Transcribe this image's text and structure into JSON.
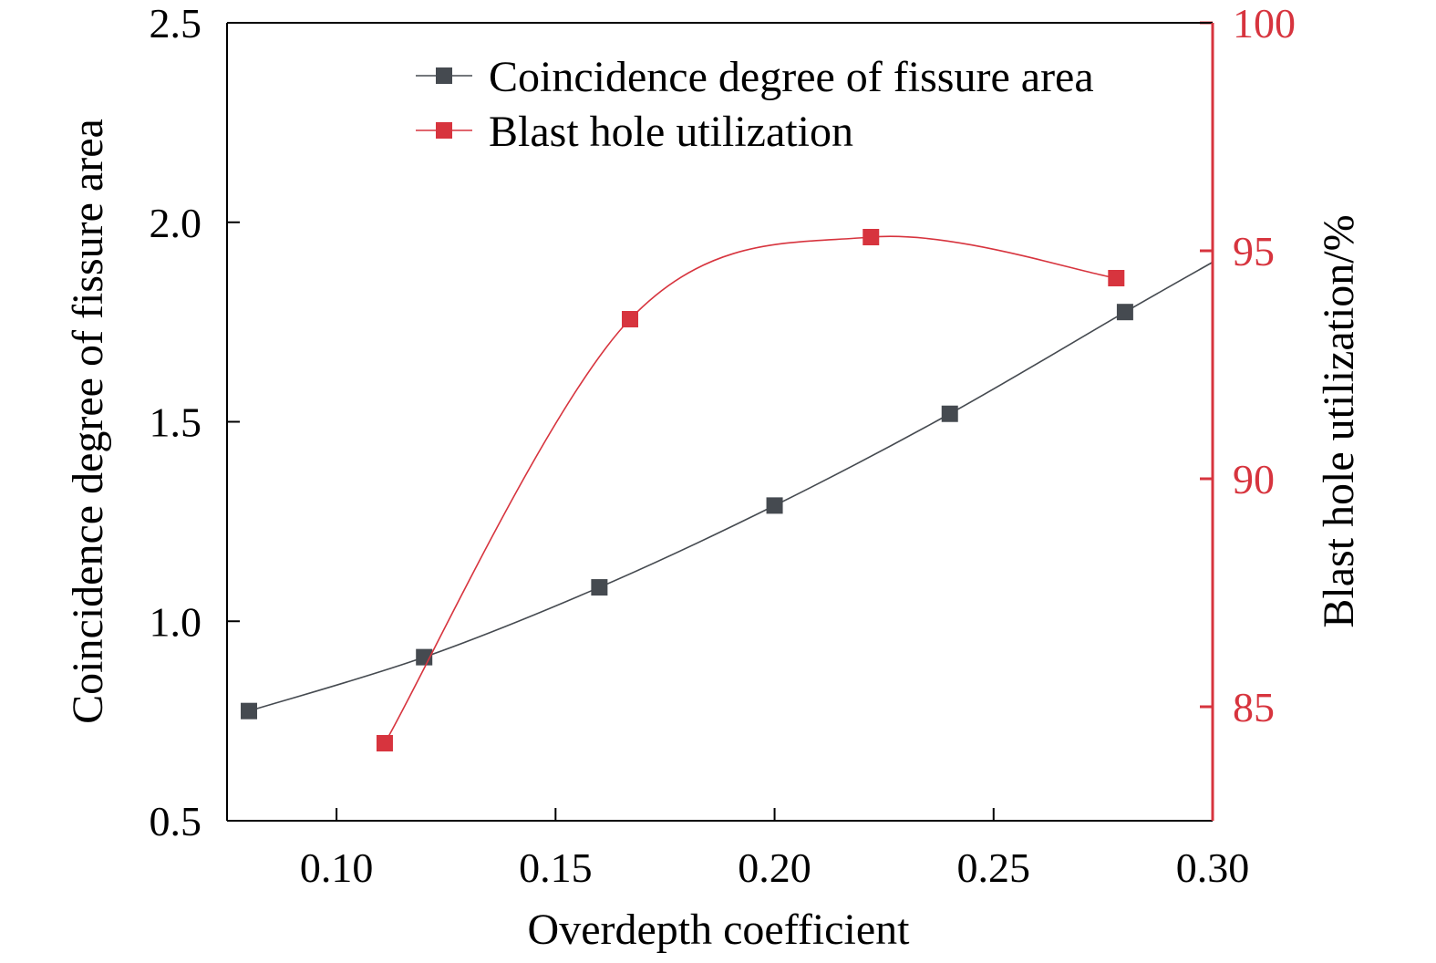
{
  "chart_data": {
    "type": "line",
    "title": "",
    "xlabel": "Overdepth coefficient",
    "ylabel_left": "Coincidence degree of fissure area",
    "ylabel_right": "Blast hole utilization/%",
    "xlim": [
      0.075,
      0.3
    ],
    "ylim_left": [
      0.5,
      2.5
    ],
    "ylim_right": [
      82.5,
      100
    ],
    "x_ticks": [
      "0.10",
      "0.15",
      "0.20",
      "0.25",
      "0.30"
    ],
    "y_left_ticks": [
      "0.5",
      "1.0",
      "1.5",
      "2.0",
      "2.5"
    ],
    "y_right_ticks": [
      "85",
      "90",
      "95",
      "100"
    ],
    "grid": false,
    "legend_position": "top-right",
    "axis_colors": {
      "left": "#000000",
      "right": "#d7343e"
    },
    "series": [
      {
        "name": "Coincidence degree of fissure area",
        "axis": "left",
        "color": "#454a50",
        "x": [
          0.08,
          0.12,
          0.16,
          0.2,
          0.24,
          0.28
        ],
        "y": [
          0.775,
          0.91,
          1.085,
          1.29,
          1.52,
          1.775
        ],
        "curve_end": [
          0.3,
          1.9
        ]
      },
      {
        "name": "Blast hole utilization",
        "axis": "right",
        "color": "#d7343e",
        "x": [
          0.111,
          0.167,
          0.222,
          0.278
        ],
        "y": [
          84.2,
          93.5,
          95.3,
          94.4
        ]
      }
    ]
  }
}
